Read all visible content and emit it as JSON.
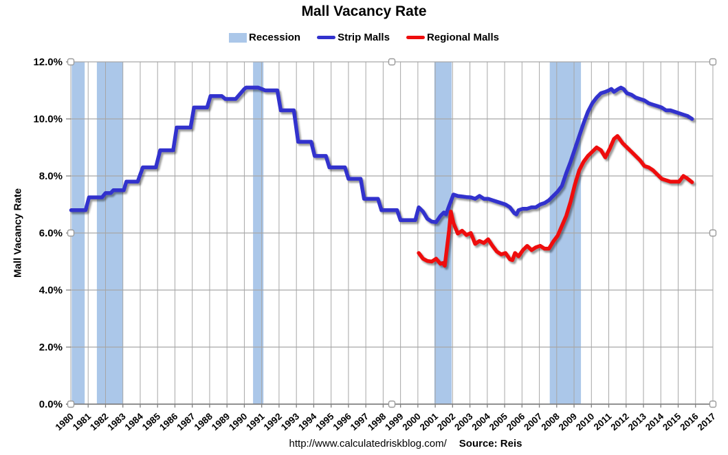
{
  "title": "Mall Vacancy Rate",
  "legend": [
    {
      "label": "Recession",
      "type": "band"
    },
    {
      "label": "Strip Malls",
      "type": "line"
    },
    {
      "label": "Regional Malls",
      "type": "line"
    }
  ],
  "footer": {
    "url": "http://www.calculatedriskblog.com/",
    "source": "Source: Reis"
  },
  "colors": {
    "recession_band": "#ABC7E9",
    "strip_malls": "#3232CD",
    "regional_malls": "#EE0D0D",
    "gridline": "#A6A6A6",
    "axis": "#808080",
    "text": "#000000",
    "handle_fill": "#FFFFFF",
    "handle_stroke": "#9B9B9B"
  },
  "chart_data": {
    "type": "line",
    "title": "Mall Vacancy Rate",
    "xlabel": "",
    "ylabel": "Mall Vacancy Rate",
    "xlim": [
      1980,
      2017
    ],
    "ylim": [
      0,
      12
    ],
    "grid": true,
    "legend_position": "top",
    "x_ticks": [
      1980,
      1981,
      1982,
      1983,
      1984,
      1985,
      1986,
      1987,
      1988,
      1989,
      1990,
      1991,
      1992,
      1993,
      1994,
      1995,
      1996,
      1997,
      1998,
      1999,
      2000,
      2001,
      2002,
      2003,
      2004,
      2005,
      2006,
      2007,
      2008,
      2009,
      2010,
      2011,
      2012,
      2013,
      2014,
      2015,
      2016,
      2017
    ],
    "y_ticks": [
      0,
      2,
      4,
      6,
      8,
      10,
      12
    ],
    "y_tick_labels": [
      "0.0%",
      "2.0%",
      "4.0%",
      "6.0%",
      "8.0%",
      "10.0%",
      "12.0%"
    ],
    "recession_bands": [
      [
        1980.05,
        1980.8
      ],
      [
        1981.5,
        1983.0
      ],
      [
        1990.5,
        1991.1
      ],
      [
        2000.95,
        2001.95
      ],
      [
        2007.6,
        2009.4
      ]
    ],
    "series": [
      {
        "name": "Strip Malls",
        "color": "#3232CD",
        "points": [
          [
            1980.02,
            6.8
          ],
          [
            1980.85,
            6.8
          ],
          [
            1981.05,
            7.25
          ],
          [
            1981.8,
            7.25
          ],
          [
            1982.0,
            7.4
          ],
          [
            1982.3,
            7.4
          ],
          [
            1982.45,
            7.5
          ],
          [
            1983.05,
            7.5
          ],
          [
            1983.2,
            7.8
          ],
          [
            1983.85,
            7.8
          ],
          [
            1984.15,
            8.3
          ],
          [
            1984.9,
            8.3
          ],
          [
            1985.15,
            8.9
          ],
          [
            1985.9,
            8.9
          ],
          [
            1986.1,
            9.7
          ],
          [
            1986.9,
            9.7
          ],
          [
            1987.1,
            10.4
          ],
          [
            1987.85,
            10.4
          ],
          [
            1988.05,
            10.8
          ],
          [
            1988.7,
            10.8
          ],
          [
            1988.9,
            10.7
          ],
          [
            1989.5,
            10.7
          ],
          [
            1990.0,
            11.05
          ],
          [
            1990.1,
            11.1
          ],
          [
            1990.8,
            11.1
          ],
          [
            1991.0,
            11.05
          ],
          [
            1991.2,
            11.0
          ],
          [
            1991.9,
            11.0
          ],
          [
            1992.1,
            10.3
          ],
          [
            1992.85,
            10.3
          ],
          [
            1993.1,
            9.2
          ],
          [
            1993.85,
            9.2
          ],
          [
            1994.05,
            8.7
          ],
          [
            1994.7,
            8.7
          ],
          [
            1994.9,
            8.3
          ],
          [
            1995.8,
            8.3
          ],
          [
            1996.0,
            7.9
          ],
          [
            1996.7,
            7.9
          ],
          [
            1996.9,
            7.2
          ],
          [
            1997.7,
            7.2
          ],
          [
            1997.9,
            6.8
          ],
          [
            1998.8,
            6.8
          ],
          [
            1999.0,
            6.45
          ],
          [
            1999.85,
            6.45
          ],
          [
            2000.05,
            6.9
          ],
          [
            2000.3,
            6.75
          ],
          [
            2000.55,
            6.5
          ],
          [
            2000.8,
            6.4
          ],
          [
            2001.05,
            6.38
          ],
          [
            2001.3,
            6.6
          ],
          [
            2001.5,
            6.72
          ],
          [
            2001.62,
            6.65
          ],
          [
            2001.8,
            6.95
          ],
          [
            2002.05,
            7.35
          ],
          [
            2002.3,
            7.3
          ],
          [
            2002.55,
            7.28
          ],
          [
            2002.8,
            7.26
          ],
          [
            2003.05,
            7.25
          ],
          [
            2003.3,
            7.2
          ],
          [
            2003.55,
            7.3
          ],
          [
            2003.8,
            7.2
          ],
          [
            2004.05,
            7.2
          ],
          [
            2004.3,
            7.15
          ],
          [
            2004.55,
            7.1
          ],
          [
            2004.8,
            7.05
          ],
          [
            2005.05,
            7.0
          ],
          [
            2005.3,
            6.9
          ],
          [
            2005.55,
            6.7
          ],
          [
            2005.68,
            6.65
          ],
          [
            2005.8,
            6.8
          ],
          [
            2006.05,
            6.85
          ],
          [
            2006.3,
            6.85
          ],
          [
            2006.55,
            6.9
          ],
          [
            2006.8,
            6.9
          ],
          [
            2007.05,
            7.0
          ],
          [
            2007.3,
            7.05
          ],
          [
            2007.55,
            7.15
          ],
          [
            2007.8,
            7.3
          ],
          [
            2008.05,
            7.45
          ],
          [
            2008.3,
            7.65
          ],
          [
            2008.55,
            8.1
          ],
          [
            2008.8,
            8.5
          ],
          [
            2009.05,
            8.95
          ],
          [
            2009.3,
            9.4
          ],
          [
            2009.55,
            9.85
          ],
          [
            2009.8,
            10.25
          ],
          [
            2010.05,
            10.55
          ],
          [
            2010.3,
            10.75
          ],
          [
            2010.55,
            10.9
          ],
          [
            2010.8,
            10.95
          ],
          [
            2011.0,
            11.0
          ],
          [
            2011.15,
            11.05
          ],
          [
            2011.3,
            10.95
          ],
          [
            2011.55,
            11.05
          ],
          [
            2011.7,
            11.1
          ],
          [
            2011.85,
            11.05
          ],
          [
            2012.05,
            10.9
          ],
          [
            2012.3,
            10.85
          ],
          [
            2012.55,
            10.75
          ],
          [
            2012.8,
            10.7
          ],
          [
            2013.05,
            10.65
          ],
          [
            2013.3,
            10.55
          ],
          [
            2013.55,
            10.5
          ],
          [
            2013.8,
            10.45
          ],
          [
            2014.05,
            10.4
          ],
          [
            2014.3,
            10.3
          ],
          [
            2014.55,
            10.3
          ],
          [
            2014.8,
            10.25
          ],
          [
            2015.05,
            10.2
          ],
          [
            2015.3,
            10.15
          ],
          [
            2015.55,
            10.1
          ],
          [
            2015.8,
            10.0
          ]
        ]
      },
      {
        "name": "Regional Malls",
        "color": "#EE0D0D",
        "points": [
          [
            2000.05,
            5.3
          ],
          [
            2000.3,
            5.1
          ],
          [
            2000.55,
            5.02
          ],
          [
            2000.8,
            5.0
          ],
          [
            2001.05,
            5.1
          ],
          [
            2001.3,
            4.92
          ],
          [
            2001.45,
            4.95
          ],
          [
            2001.55,
            4.85
          ],
          [
            2001.8,
            6.1
          ],
          [
            2001.9,
            6.75
          ],
          [
            2002.05,
            6.35
          ],
          [
            2002.3,
            5.98
          ],
          [
            2002.55,
            6.08
          ],
          [
            2002.8,
            5.93
          ],
          [
            2003.05,
            6.0
          ],
          [
            2003.3,
            5.62
          ],
          [
            2003.55,
            5.72
          ],
          [
            2003.8,
            5.65
          ],
          [
            2004.05,
            5.78
          ],
          [
            2004.3,
            5.55
          ],
          [
            2004.55,
            5.35
          ],
          [
            2004.8,
            5.25
          ],
          [
            2005.05,
            5.3
          ],
          [
            2005.3,
            5.08
          ],
          [
            2005.45,
            5.05
          ],
          [
            2005.6,
            5.3
          ],
          [
            2005.8,
            5.18
          ],
          [
            2006.05,
            5.4
          ],
          [
            2006.3,
            5.55
          ],
          [
            2006.55,
            5.4
          ],
          [
            2006.8,
            5.5
          ],
          [
            2007.05,
            5.55
          ],
          [
            2007.3,
            5.45
          ],
          [
            2007.55,
            5.45
          ],
          [
            2007.8,
            5.7
          ],
          [
            2008.05,
            5.9
          ],
          [
            2008.3,
            6.25
          ],
          [
            2008.55,
            6.6
          ],
          [
            2008.8,
            7.1
          ],
          [
            2009.05,
            7.7
          ],
          [
            2009.3,
            8.2
          ],
          [
            2009.55,
            8.5
          ],
          [
            2009.8,
            8.7
          ],
          [
            2010.05,
            8.85
          ],
          [
            2010.3,
            9.0
          ],
          [
            2010.55,
            8.9
          ],
          [
            2010.8,
            8.65
          ],
          [
            2011.05,
            8.95
          ],
          [
            2011.3,
            9.3
          ],
          [
            2011.5,
            9.4
          ],
          [
            2011.8,
            9.15
          ],
          [
            2012.05,
            9.0
          ],
          [
            2012.3,
            8.85
          ],
          [
            2012.55,
            8.7
          ],
          [
            2012.8,
            8.55
          ],
          [
            2013.05,
            8.35
          ],
          [
            2013.3,
            8.3
          ],
          [
            2013.55,
            8.2
          ],
          [
            2013.8,
            8.05
          ],
          [
            2014.05,
            7.9
          ],
          [
            2014.3,
            7.85
          ],
          [
            2014.55,
            7.8
          ],
          [
            2014.8,
            7.8
          ],
          [
            2015.05,
            7.8
          ],
          [
            2015.3,
            8.0
          ],
          [
            2015.55,
            7.9
          ],
          [
            2015.8,
            7.78
          ]
        ]
      }
    ]
  }
}
